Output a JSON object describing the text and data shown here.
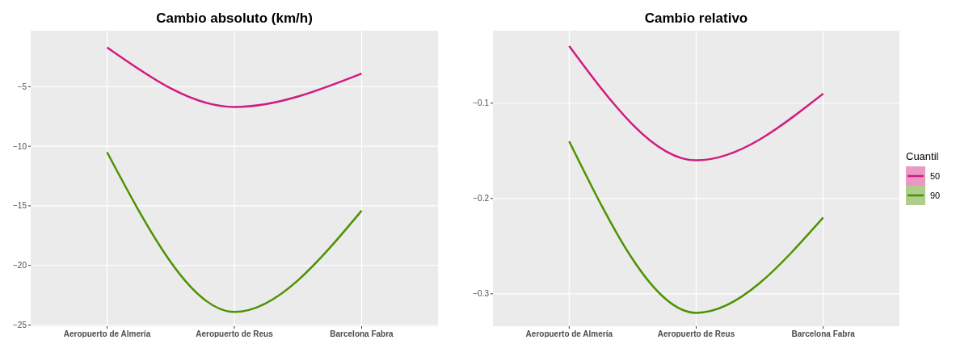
{
  "chart_data": [
    {
      "type": "line",
      "title": "Cambio absoluto (km/h)",
      "categories": [
        "Aeropuerto de Almería",
        "Aeropuerto de Reus",
        "Barcelona Fabra"
      ],
      "series": [
        {
          "color": "#d01c7f",
          "values": [
            -1.7,
            -6.7,
            -3.9
          ]
        },
        {
          "color": "#4d9200",
          "values": [
            -10.5,
            -23.9,
            -15.4
          ]
        }
      ],
      "ylim": [
        -25.1,
        -0.3
      ],
      "yticks": [
        {
          "value": -5,
          "label": "−5"
        },
        {
          "value": -10,
          "label": "−10"
        },
        {
          "value": -15,
          "label": "−15"
        },
        {
          "value": -20,
          "label": "−20"
        },
        {
          "value": -25,
          "label": "−25"
        }
      ],
      "grid": true,
      "legend": false
    },
    {
      "type": "line",
      "title": "Cambio relativo",
      "categories": [
        "Aeropuerto de Almería",
        "Aeropuerto de Reus",
        "Barcelona Fabra"
      ],
      "series": [
        {
          "name": "50",
          "color": "#d01c7f",
          "values": [
            -0.04,
            -0.16,
            -0.09
          ]
        },
        {
          "name": "90",
          "color": "#4d9200",
          "values": [
            -0.14,
            -0.32,
            -0.22
          ]
        }
      ],
      "ylim": [
        -0.334,
        -0.024
      ],
      "yticks": [
        {
          "value": -0.1,
          "label": "−0.1"
        },
        {
          "value": -0.2,
          "label": "−0.2"
        },
        {
          "value": -0.3,
          "label": "−0.3"
        }
      ],
      "grid": true,
      "legend": "right",
      "legend_title": "Cuantil"
    }
  ]
}
